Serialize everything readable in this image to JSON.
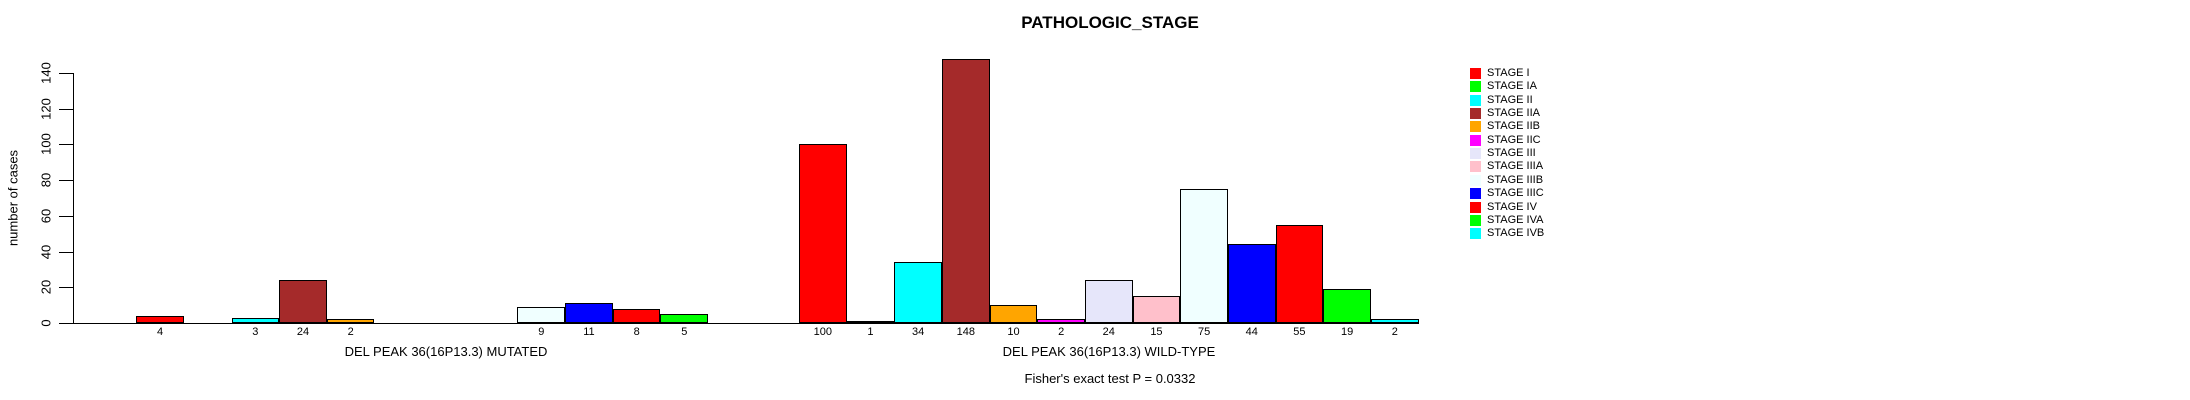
{
  "title": "PATHOLOGIC_STAGE",
  "chart_data": {
    "type": "bar",
    "title": "PATHOLOGIC_STAGE",
    "ylabel": "number of cases",
    "ylim": [
      0,
      140
    ],
    "yticks": [
      0,
      20,
      40,
      60,
      80,
      100,
      120,
      140
    ],
    "grid": false,
    "legend_position": "right",
    "categories": [
      "STAGE I",
      "STAGE IA",
      "STAGE II",
      "STAGE IIA",
      "STAGE IIB",
      "STAGE IIC",
      "STAGE III",
      "STAGE IIIA",
      "STAGE IIIB",
      "STAGE IIIC",
      "STAGE IV",
      "STAGE IVA",
      "STAGE IVB"
    ],
    "category_colors": [
      "#FF0000",
      "#00FF00",
      "#00FFFF",
      "#A52A2A",
      "#FFA500",
      "#FF00FF",
      "#E6E6FA",
      "#FFC0CB",
      "#F0FFFF",
      "#0000FF",
      "#FF0000",
      "#00FF00",
      "#00FFFF"
    ],
    "groups": [
      {
        "label": "DEL PEAK 36(16P13.3) MUTATED",
        "values": [
          4,
          0,
          3,
          24,
          2,
          0,
          0,
          0,
          9,
          11,
          8,
          5,
          0
        ]
      },
      {
        "label": "DEL PEAK 36(16P13.3) WILD-TYPE",
        "values": [
          100,
          1,
          34,
          148,
          10,
          2,
          24,
          15,
          75,
          44,
          55,
          19,
          2
        ]
      }
    ],
    "bar_count_labels_visible": true,
    "zero_bars_hidden": true,
    "annotation": "Fisher's exact test P = 0.0332",
    "axis_color": "#000000",
    "bar_border_color": "#000000",
    "background_color": "#FFFFFF"
  }
}
